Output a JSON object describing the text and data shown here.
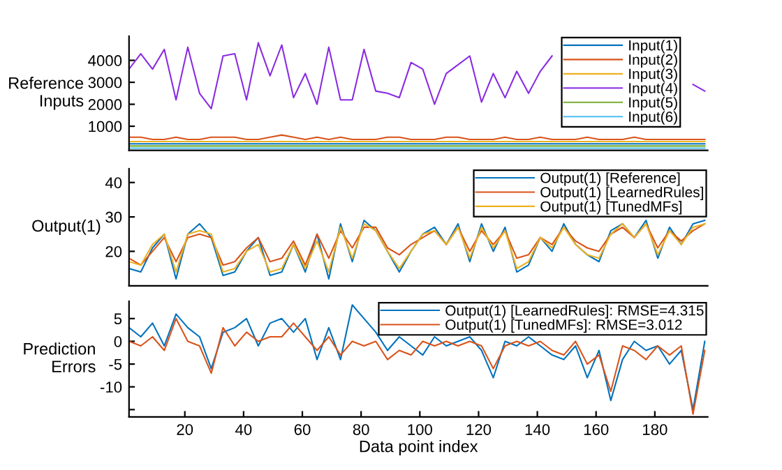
{
  "chart_data": [
    {
      "type": "line",
      "ylabel": "Reference\nInputs",
      "xlim": [
        1,
        198
      ],
      "xticks": [
        20,
        40,
        60,
        80,
        100,
        120,
        140,
        160,
        180
      ],
      "ylim": [
        -100,
        5100
      ],
      "yticks": [
        1000,
        2000,
        3000,
        4000
      ],
      "tick_labels": "y",
      "legend": "top right",
      "grid": false,
      "x": [
        1,
        5,
        9,
        13,
        17,
        21,
        25,
        29,
        33,
        37,
        41,
        45,
        49,
        53,
        57,
        61,
        65,
        69,
        73,
        77,
        81,
        85,
        89,
        93,
        97,
        101,
        105,
        109,
        113,
        117,
        121,
        125,
        129,
        133,
        137,
        141,
        145,
        149,
        153,
        157,
        161,
        165,
        169,
        173,
        177,
        181,
        185,
        189,
        193,
        197
      ],
      "series": [
        {
          "name": "Input(1)",
          "color": "#0072bd",
          "values": [
            200,
            200,
            200,
            200,
            200,
            200,
            200,
            200,
            200,
            200,
            200,
            200,
            200,
            200,
            200,
            200,
            200,
            200,
            200,
            200,
            200,
            200,
            200,
            200,
            200,
            200,
            200,
            200,
            200,
            200,
            200,
            200,
            200,
            200,
            200,
            200,
            200,
            200,
            200,
            200,
            200,
            200,
            200,
            200,
            200,
            200,
            200,
            200,
            200,
            200
          ]
        },
        {
          "name": "Input(2)",
          "color": "#d95319",
          "values": [
            500,
            500,
            400,
            400,
            500,
            400,
            400,
            500,
            500,
            500,
            400,
            400,
            500,
            600,
            500,
            400,
            500,
            400,
            500,
            400,
            400,
            400,
            500,
            500,
            400,
            400,
            400,
            500,
            500,
            400,
            400,
            400,
            500,
            400,
            400,
            500,
            400,
            400,
            400,
            500,
            400,
            400,
            400,
            500,
            400,
            400,
            400,
            400,
            400,
            400
          ]
        },
        {
          "name": "Input(3)",
          "color": "#edb120",
          "values": [
            300,
            300,
            300,
            300,
            300,
            300,
            300,
            300,
            300,
            300,
            300,
            300,
            300,
            300,
            300,
            300,
            300,
            300,
            300,
            300,
            300,
            300,
            300,
            300,
            300,
            300,
            300,
            300,
            300,
            300,
            300,
            300,
            300,
            300,
            300,
            300,
            300,
            300,
            300,
            300,
            300,
            300,
            300,
            300,
            300,
            300,
            300,
            300,
            300,
            300
          ]
        },
        {
          "name": "Input(4)",
          "color": "#8a2be2",
          "values": [
            3600,
            4300,
            3600,
            4500,
            2200,
            4600,
            2500,
            1800,
            4200,
            4300,
            2200,
            4800,
            3300,
            4700,
            2300,
            3400,
            2000,
            4600,
            2200,
            2200,
            4500,
            2600,
            2500,
            2300,
            3900,
            3600,
            2000,
            3400,
            3800,
            4200,
            2100,
            3400,
            2300,
            3500,
            2500,
            3500,
            4200,
            null,
            null,
            null,
            null,
            null,
            null,
            null,
            null,
            null,
            null,
            null,
            2900,
            2600
          ]
        },
        {
          "name": "Input(5)",
          "color": "#77ac30",
          "values": [
            100,
            100,
            100,
            100,
            100,
            100,
            100,
            100,
            100,
            100,
            100,
            100,
            100,
            100,
            100,
            100,
            100,
            100,
            100,
            100,
            100,
            100,
            100,
            100,
            100,
            100,
            100,
            100,
            100,
            100,
            100,
            100,
            100,
            100,
            100,
            100,
            100,
            100,
            100,
            100,
            100,
            100,
            100,
            100,
            100,
            100,
            100,
            100,
            100,
            100
          ]
        },
        {
          "name": "Input(6)",
          "color": "#4dbeee",
          "values": [
            0,
            0,
            0,
            0,
            0,
            0,
            0,
            0,
            0,
            0,
            0,
            0,
            0,
            0,
            0,
            0,
            0,
            0,
            0,
            0,
            0,
            0,
            0,
            0,
            0,
            0,
            0,
            0,
            0,
            0,
            0,
            0,
            0,
            0,
            0,
            0,
            0,
            0,
            0,
            0,
            0,
            0,
            0,
            0,
            0,
            0,
            0,
            0,
            0,
            0
          ]
        }
      ]
    },
    {
      "type": "line",
      "ylabel": "Output(1)",
      "xlim": [
        1,
        198
      ],
      "xticks": [
        20,
        40,
        60,
        80,
        100,
        120,
        140,
        160,
        180
      ],
      "ylim": [
        10,
        44
      ],
      "yticks": [
        20,
        30,
        40
      ],
      "tick_labels": "y",
      "legend": "top right",
      "grid": false,
      "x": [
        1,
        5,
        9,
        13,
        17,
        21,
        25,
        29,
        33,
        37,
        41,
        45,
        49,
        53,
        57,
        61,
        65,
        69,
        73,
        77,
        81,
        85,
        89,
        93,
        97,
        101,
        105,
        109,
        113,
        117,
        121,
        125,
        129,
        133,
        137,
        141,
        145,
        149,
        153,
        157,
        161,
        165,
        169,
        173,
        177,
        181,
        185,
        189,
        193,
        197
      ],
      "series": [
        {
          "name": "Output(1) [Reference]",
          "color": "#0072bd",
          "values": [
            15,
            14,
            21,
            25,
            12,
            25,
            28,
            24,
            13,
            14,
            20,
            24,
            13,
            14,
            22,
            14,
            25,
            12,
            28,
            17,
            29,
            26,
            20,
            14,
            20,
            25,
            27,
            22,
            28,
            17,
            28,
            20,
            27,
            14,
            16,
            24,
            20,
            28,
            22,
            19,
            17,
            26,
            28,
            24,
            29,
            18,
            27,
            22,
            28,
            29
          ]
        },
        {
          "name": "Output(1) [LearnedRules]",
          "color": "#d95319",
          "values": [
            18,
            16,
            20,
            24,
            17,
            24,
            25,
            24,
            16,
            17,
            21,
            24,
            17,
            18,
            23,
            16,
            25,
            18,
            26,
            21,
            27,
            27,
            21,
            19,
            22,
            24,
            26,
            22,
            27,
            20,
            26,
            22,
            26,
            18,
            19,
            24,
            22,
            27,
            23,
            21,
            20,
            25,
            27,
            24,
            28,
            21,
            26,
            23,
            26,
            28
          ]
        },
        {
          "name": "Output(1) [TunedMFs]",
          "color": "#edb120",
          "values": [
            17,
            16,
            22,
            25,
            14,
            25,
            26,
            25,
            14,
            15,
            20,
            22,
            14,
            15,
            22,
            15,
            23,
            14,
            27,
            18,
            28,
            26,
            20,
            15,
            20,
            25,
            26,
            22,
            27,
            18,
            27,
            21,
            26,
            15,
            17,
            24,
            21,
            27,
            22,
            19,
            18,
            25,
            28,
            24,
            28,
            19,
            26,
            22,
            27,
            28
          ]
        }
      ]
    },
    {
      "type": "line",
      "ylabel": "Prediction\nErrors",
      "xlabel": "Data point index",
      "xlim": [
        1,
        198
      ],
      "xticks": [
        20,
        40,
        60,
        80,
        100,
        120,
        140,
        160,
        180
      ],
      "ylim": [
        -16.6,
        8.8
      ],
      "yticks": [
        {
          "value": -15,
          "label": null
        },
        -10,
        -5,
        0,
        5
      ],
      "legend": "top right",
      "grid": false,
      "x": [
        1,
        5,
        9,
        13,
        17,
        21,
        25,
        29,
        33,
        37,
        41,
        45,
        49,
        53,
        57,
        61,
        65,
        69,
        73,
        77,
        81,
        85,
        89,
        93,
        97,
        101,
        105,
        109,
        113,
        117,
        121,
        125,
        129,
        133,
        137,
        141,
        145,
        149,
        153,
        157,
        161,
        165,
        169,
        173,
        177,
        181,
        185,
        189,
        193,
        197
      ],
      "series": [
        {
          "name": "Output(1) [LearnedRules]: RMSE=4.315",
          "color": "#0072bd",
          "values": [
            3,
            1,
            4,
            -1,
            6,
            3,
            1,
            -6,
            2,
            3,
            5,
            -1,
            4,
            5,
            2,
            5,
            -4,
            3,
            -4,
            8,
            5,
            2,
            -2,
            1,
            -1,
            -3,
            1,
            -1,
            0,
            1,
            -2,
            -8,
            0,
            -1,
            1,
            -1,
            -3,
            -4,
            -1,
            -8,
            -2,
            -13,
            -4,
            0,
            -2,
            -1,
            -5,
            -2,
            -15,
            0
          ]
        },
        {
          "name": "Output(1) [TunedMFs]: RMSE=3.012",
          "color": "#d95319",
          "values": [
            0,
            -1,
            1,
            -2,
            5,
            0,
            -1,
            -7,
            3,
            -1,
            2,
            0,
            1,
            1,
            4,
            1,
            -2,
            1,
            -3,
            0,
            -1,
            0,
            -4,
            -2,
            -3,
            0,
            -1,
            0,
            -1,
            0,
            -1,
            -6,
            -1,
            0,
            -1,
            0,
            -2,
            -3,
            0,
            -5,
            -3,
            -11,
            -1,
            -2,
            -4,
            -1,
            -3,
            -1,
            -16,
            -2
          ]
        }
      ]
    }
  ]
}
